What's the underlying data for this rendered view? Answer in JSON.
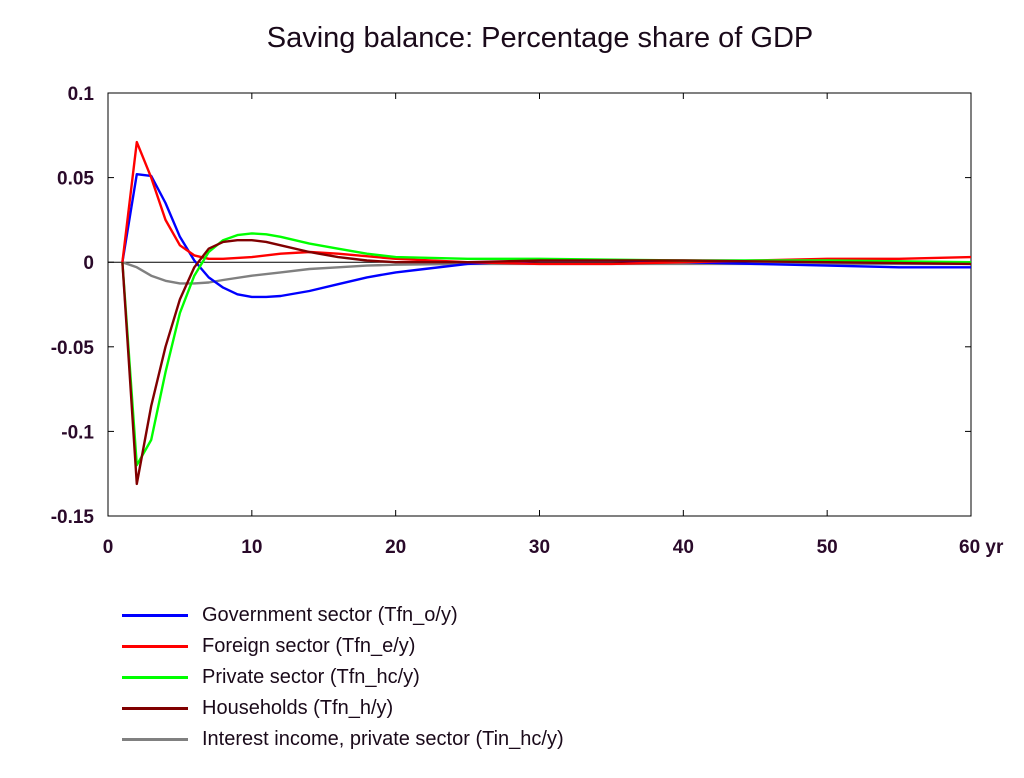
{
  "chart_data": {
    "type": "line",
    "title": "Saving balance: Percentage share of GDP",
    "xlabel": "",
    "ylabel": "",
    "xlim": [
      0,
      60
    ],
    "ylim": [
      -0.15,
      0.1
    ],
    "x_ticks": [
      {
        "value": 0,
        "label": "0"
      },
      {
        "value": 10,
        "label": "10"
      },
      {
        "value": 20,
        "label": "20"
      },
      {
        "value": 30,
        "label": "30"
      },
      {
        "value": 40,
        "label": "40"
      },
      {
        "value": 50,
        "label": "50"
      },
      {
        "value": 60,
        "label": "60 yr"
      }
    ],
    "y_ticks": [
      {
        "value": 0.1,
        "label": "0.1"
      },
      {
        "value": 0.05,
        "label": "0.05"
      },
      {
        "value": 0,
        "label": "0"
      },
      {
        "value": -0.05,
        "label": "-0.05"
      },
      {
        "value": -0.1,
        "label": "-0.1"
      },
      {
        "value": -0.15,
        "label": "-0.15"
      }
    ],
    "zero_line": true,
    "grid": false,
    "legend_position": "below",
    "series": [
      {
        "name": "Government sector (Tfn_o/y)",
        "color": "#0000ff",
        "x": [
          1,
          2,
          3,
          4,
          5,
          6,
          7,
          8,
          9,
          10,
          11,
          12,
          14,
          16,
          18,
          20,
          22,
          25,
          30,
          35,
          40,
          45,
          50,
          55,
          60
        ],
        "y": [
          0,
          0.052,
          0.051,
          0.035,
          0.015,
          0.001,
          -0.009,
          -0.015,
          -0.019,
          -0.0205,
          -0.0205,
          -0.02,
          -0.017,
          -0.013,
          -0.009,
          -0.006,
          -0.004,
          -0.001,
          0.001,
          0.001,
          0,
          -0.001,
          -0.002,
          -0.003,
          -0.003
        ]
      },
      {
        "name": "Foreign sector (Tfn_e/y)",
        "color": "#ff0000",
        "x": [
          1,
          2,
          3,
          4,
          5,
          6,
          7,
          8,
          10,
          12,
          14,
          16,
          20,
          25,
          30,
          35,
          40,
          45,
          50,
          55,
          60
        ],
        "y": [
          0,
          0.071,
          0.05,
          0.025,
          0.01,
          0.004,
          0.002,
          0.002,
          0.003,
          0.005,
          0.006,
          0.005,
          0.002,
          0,
          -0.001,
          -0.001,
          0,
          0.001,
          0.002,
          0.002,
          0.003
        ]
      },
      {
        "name": "Private sector (Tfn_hc/y)",
        "color": "#00ff00",
        "x": [
          1,
          2,
          3,
          4,
          5,
          6,
          7,
          8,
          9,
          10,
          11,
          12,
          14,
          16,
          18,
          20,
          25,
          30,
          40,
          50,
          60
        ],
        "y": [
          0,
          -0.12,
          -0.105,
          -0.065,
          -0.03,
          -0.008,
          0.006,
          0.013,
          0.016,
          0.017,
          0.0165,
          0.015,
          0.011,
          0.008,
          0.005,
          0.003,
          0.002,
          0.002,
          0.001,
          0.001,
          0
        ]
      },
      {
        "name": "Households (Tfn_h/y)",
        "color": "#800000",
        "x": [
          1,
          2,
          3,
          4,
          5,
          6,
          7,
          8,
          9,
          10,
          11,
          12,
          14,
          16,
          18,
          20,
          25,
          30,
          40,
          50,
          60
        ],
        "y": [
          0,
          -0.131,
          -0.085,
          -0.05,
          -0.022,
          -0.003,
          0.008,
          0.012,
          0.013,
          0.013,
          0.012,
          0.01,
          0.006,
          0.003,
          0.001,
          0,
          0,
          0.001,
          0.001,
          0,
          -0.001
        ]
      },
      {
        "name": "Interest income, private sector (Tin_hc/y)",
        "color": "#808080",
        "x": [
          1,
          2,
          3,
          4,
          5,
          6,
          7,
          8,
          10,
          12,
          14,
          16,
          18,
          20,
          25,
          30,
          40,
          50,
          60
        ],
        "y": [
          0,
          -0.003,
          -0.008,
          -0.011,
          -0.0125,
          -0.0125,
          -0.012,
          -0.0105,
          -0.008,
          -0.006,
          -0.004,
          -0.003,
          -0.002,
          -0.0015,
          -0.001,
          -0.001,
          -0.001,
          -0.001,
          -0.001
        ]
      }
    ]
  }
}
